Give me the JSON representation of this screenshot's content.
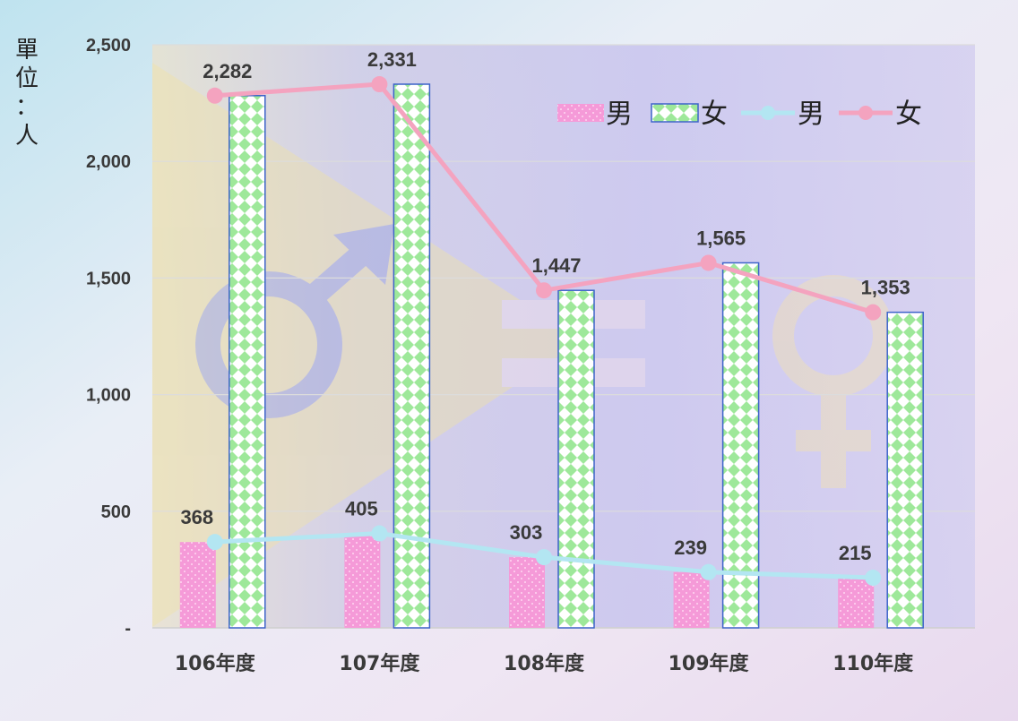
{
  "chart_data": {
    "type": "bar",
    "categories": [
      "106年度",
      "107年度",
      "108年度",
      "109年度",
      "110年度"
    ],
    "series": [
      {
        "name": "男",
        "kind": "bar",
        "values": [
          368,
          405,
          303,
          239,
          215
        ],
        "color": "#f59ad8"
      },
      {
        "name": "女",
        "kind": "bar",
        "values": [
          2282,
          2331,
          1447,
          1565,
          1353
        ],
        "color": "#9ee89a"
      },
      {
        "name": "男",
        "kind": "line",
        "values": [
          368,
          405,
          303,
          239,
          215
        ],
        "color": "#b3e6f2"
      },
      {
        "name": "女",
        "kind": "line",
        "values": [
          2282,
          2331,
          1447,
          1565,
          1353
        ],
        "color": "#f4a3bf"
      }
    ],
    "data_labels": {
      "male": [
        "368",
        "405",
        "303",
        "239",
        "215"
      ],
      "female": [
        "2,282",
        "2,331",
        "1,447",
        "1,565",
        "1,353"
      ]
    },
    "y_ticks": [
      {
        "value": 0,
        "label": "-"
      },
      {
        "value": 500,
        "label": "500"
      },
      {
        "value": 1000,
        "label": "1,000"
      },
      {
        "value": 1500,
        "label": "1,500"
      },
      {
        "value": 2000,
        "label": "2,000"
      },
      {
        "value": 2500,
        "label": "2,500"
      }
    ],
    "ylim": [
      0,
      2500
    ],
    "y_unit_label": [
      "單",
      "位",
      "：",
      "人"
    ],
    "legend": {
      "placement": "top-right"
    },
    "grid": true
  }
}
